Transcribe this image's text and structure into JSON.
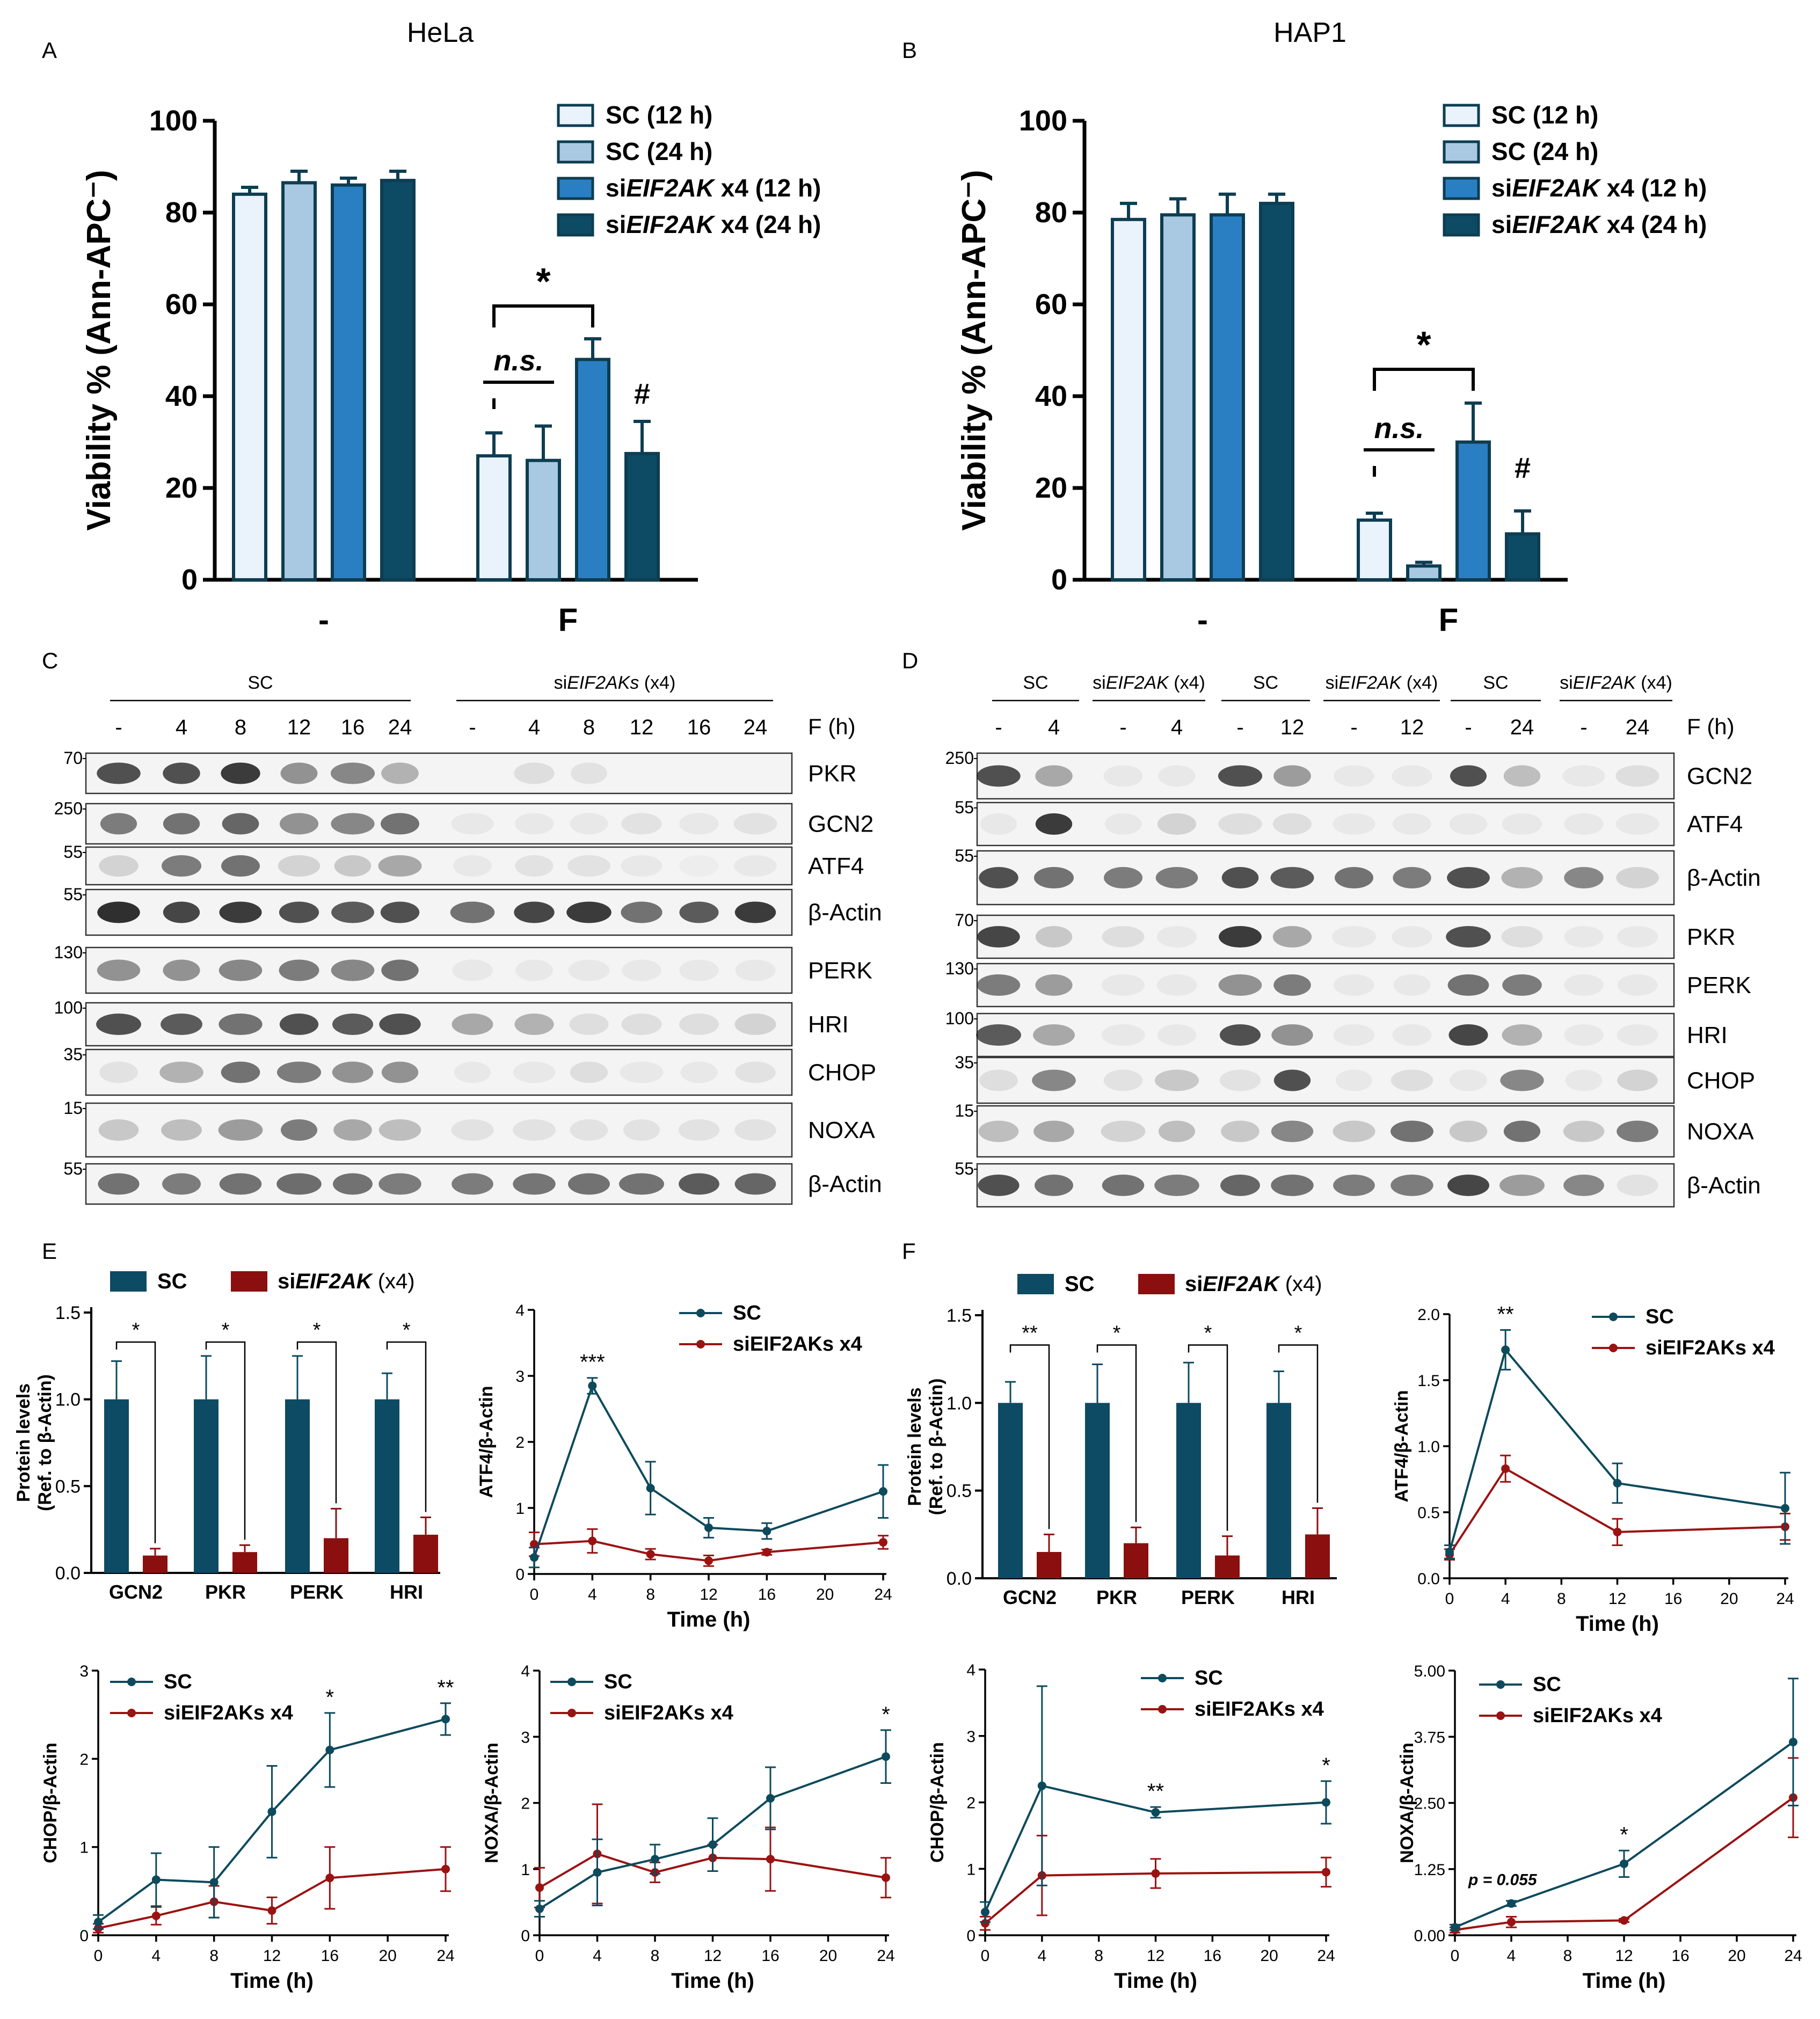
{
  "colors": {
    "sc12": "#eaf2fb",
    "sc24": "#a9c8e2",
    "si12": "#2a7fc3",
    "si24": "#0d4a63",
    "bar_edge": "#0d3d52",
    "dark_bar": "#0d4a63",
    "red_bar": "#8b0f0f",
    "line_sc": "#0d4a5c",
    "line_si": "#9b1212"
  },
  "panels": {
    "A": "A",
    "B": "B",
    "C": "C",
    "D": "D",
    "E": "E",
    "F": "F"
  },
  "A": {
    "title": "HeLa",
    "ylabel": "Viability % (Ann-APC⁻)",
    "yticks": [
      "0",
      "20",
      "40",
      "60",
      "80",
      "100"
    ],
    "groups": [
      "-",
      "F"
    ],
    "legend": [
      "SC (12 h)",
      "SC (24 h)",
      "siEIF2AK x4 (12 h)",
      "siEIF2AK x4 (24 h)"
    ],
    "sig": {
      "star": "*",
      "ns": "n.s.",
      "hash": "#"
    },
    "chart_data": {
      "type": "bar",
      "title": "HeLa",
      "ylabel": "Viability % (Ann-APC-)",
      "ylim": [
        0,
        100
      ],
      "categories": [
        "-",
        "F"
      ],
      "series": [
        {
          "name": "SC (12 h)",
          "values": [
            84,
            27
          ],
          "errors": [
            1.5,
            5
          ]
        },
        {
          "name": "SC (24 h)",
          "values": [
            86.5,
            26
          ],
          "errors": [
            2.5,
            7.5
          ]
        },
        {
          "name": "siEIF2AK x4 (12 h)",
          "values": [
            86,
            48
          ],
          "errors": [
            1.5,
            4.5
          ]
        },
        {
          "name": "siEIF2AK x4 (24 h)",
          "values": [
            87,
            27.5
          ],
          "errors": [
            2,
            7
          ]
        }
      ]
    }
  },
  "B": {
    "title": "HAP1",
    "ylabel": "Viability % (Ann-APC⁻)",
    "yticks": [
      "0",
      "20",
      "40",
      "60",
      "80",
      "100"
    ],
    "groups": [
      "-",
      "F"
    ],
    "legend": [
      "SC (12 h)",
      "SC (24 h)",
      "siEIF2AK x4 (12 h)",
      "siEIF2AK x4 (24 h)"
    ],
    "sig": {
      "star": "*",
      "ns": "n.s.",
      "hash": "#"
    },
    "chart_data": {
      "type": "bar",
      "title": "HAP1",
      "ylabel": "Viability % (Ann-APC-)",
      "ylim": [
        0,
        100
      ],
      "categories": [
        "-",
        "F"
      ],
      "series": [
        {
          "name": "SC (12 h)",
          "values": [
            78.5,
            13
          ],
          "errors": [
            3.5,
            1.5
          ]
        },
        {
          "name": "SC (24 h)",
          "values": [
            79.5,
            3
          ],
          "errors": [
            3.5,
            0.8
          ]
        },
        {
          "name": "siEIF2AK x4 (12 h)",
          "values": [
            79.5,
            30
          ],
          "errors": [
            4.5,
            8.5
          ]
        },
        {
          "name": "siEIF2AK x4 (24 h)",
          "values": [
            82,
            10
          ],
          "errors": [
            2,
            5
          ]
        }
      ]
    }
  },
  "C": {
    "groups": [
      "SC",
      "siEIF2AKs (x4)"
    ],
    "times": [
      "-",
      "4",
      "8",
      "12",
      "16",
      "24",
      "-",
      "4",
      "8",
      "12",
      "16",
      "24"
    ],
    "time_label": "F (h)",
    "rows": [
      {
        "name": "PKR",
        "mw": "70"
      },
      {
        "name": "GCN2",
        "mw": "250"
      },
      {
        "name": "ATF4",
        "mw": "55"
      },
      {
        "name": "β-Actin",
        "mw": "55"
      },
      {
        "name": "PERK",
        "mw": "130"
      },
      {
        "name": "HRI",
        "mw": "100"
      },
      {
        "name": "CHOP",
        "mw": "35"
      },
      {
        "name": "NOXA",
        "mw": "15"
      },
      {
        "name": "β-Actin",
        "mw": "55"
      }
    ]
  },
  "D": {
    "groups": [
      "SC",
      "siEIF2AK (x4)",
      "SC",
      "siEIF2AK (x4)",
      "SC",
      "siEIF2AK (x4)"
    ],
    "times": [
      "-",
      "4",
      "-",
      "4",
      "-",
      "12",
      "-",
      "12",
      "-",
      "24",
      "-",
      "24"
    ],
    "time_label": "F (h)",
    "rows": [
      {
        "name": "GCN2",
        "mw": "250"
      },
      {
        "name": "ATF4",
        "mw": "55"
      },
      {
        "name": "β-Actin",
        "mw": "55"
      },
      {
        "name": "PKR",
        "mw": "70"
      },
      {
        "name": "PERK",
        "mw": "130"
      },
      {
        "name": "HRI",
        "mw": "100"
      },
      {
        "name": "CHOP",
        "mw": "35"
      },
      {
        "name": "NOXA",
        "mw": "15"
      },
      {
        "name": "β-Actin",
        "mw": "55"
      }
    ]
  },
  "E_bar": {
    "legend": [
      "SC",
      "siEIF2AK (x4)"
    ],
    "ylabel1": "Protein levels",
    "ylabel2": "(Ref. to β-Actin)",
    "yticks": [
      "0.0",
      "0.5",
      "1.0",
      "1.5"
    ],
    "stars": [
      "*",
      "*",
      "*",
      "*"
    ],
    "chart_data": {
      "type": "bar",
      "ylim": [
        0,
        1.5
      ],
      "categories": [
        "GCN2",
        "PKR",
        "PERK",
        "HRI"
      ],
      "series": [
        {
          "name": "SC",
          "values": [
            1,
            1,
            1,
            1
          ],
          "errors": [
            0.22,
            0.25,
            0.25,
            0.15
          ]
        },
        {
          "name": "siEIF2AK (x4)",
          "values": [
            0.1,
            0.12,
            0.2,
            0.22
          ],
          "errors": [
            0.04,
            0.04,
            0.17,
            0.1
          ]
        }
      ]
    }
  },
  "F_bar": {
    "legend": [
      "SC",
      "siEIF2AK (x4)"
    ],
    "ylabel1": "Protein levels",
    "ylabel2": "(Ref. to β-Actin)",
    "yticks": [
      "0.0",
      "0.5",
      "1.0",
      "1.5"
    ],
    "stars": [
      "**",
      "*",
      "*",
      "*"
    ],
    "chart_data": {
      "type": "bar",
      "ylim": [
        0,
        1.5
      ],
      "categories": [
        "GCN2",
        "PKR",
        "PERK",
        "HRI"
      ],
      "series": [
        {
          "name": "SC",
          "values": [
            1,
            1,
            1,
            1
          ],
          "errors": [
            0.12,
            0.22,
            0.23,
            0.18
          ]
        },
        {
          "name": "siEIF2AK (x4)",
          "values": [
            0.15,
            0.2,
            0.13,
            0.25
          ],
          "errors": [
            0.1,
            0.09,
            0.11,
            0.15
          ]
        }
      ]
    }
  },
  "lines": {
    "legend": [
      "SC",
      "siEIF2AKs x4"
    ],
    "xlabel": "Time (h)",
    "E_atf4": {
      "ylabel": "ATF4/β-Actin",
      "yticks": [
        "0",
        "1",
        "2",
        "3",
        "4"
      ],
      "xticks": [
        "0",
        "4",
        "8",
        "12",
        "16",
        "20",
        "24"
      ],
      "annotations": [
        {
          "t": 4,
          "text": "***"
        }
      ],
      "chart_data": {
        "type": "line",
        "ylim": [
          0,
          4
        ],
        "xlim": [
          0,
          24
        ],
        "x": [
          0,
          4,
          8,
          12,
          16,
          24
        ],
        "series": [
          {
            "name": "SC",
            "values": [
              0.25,
              2.85,
              1.3,
              0.7,
              0.65,
              1.25
            ],
            "errors": [
              0.15,
              0.12,
              0.4,
              0.15,
              0.12,
              0.4
            ]
          },
          {
            "name": "siEIF2AKs x4",
            "values": [
              0.45,
              0.5,
              0.3,
              0.2,
              0.33,
              0.48
            ],
            "errors": [
              0.18,
              0.18,
              0.08,
              0.08,
              0.04,
              0.1
            ]
          }
        ]
      }
    },
    "E_chop": {
      "ylabel": "CHOP/β-Actin",
      "yticks": [
        "0",
        "1",
        "2",
        "3"
      ],
      "xticks": [
        "0",
        "4",
        "8",
        "12",
        "16",
        "20",
        "24"
      ],
      "annotations": [
        {
          "t": 16,
          "text": "*"
        },
        {
          "t": 24,
          "text": "**"
        }
      ],
      "chart_data": {
        "type": "line",
        "ylim": [
          0,
          3
        ],
        "xlim": [
          0,
          24
        ],
        "x": [
          0,
          4,
          8,
          12,
          16,
          24
        ],
        "series": [
          {
            "name": "SC",
            "values": [
              0.15,
              0.63,
              0.6,
              1.4,
              2.1,
              2.45
            ],
            "errors": [
              0.08,
              0.3,
              0.4,
              0.52,
              0.42,
              0.18
            ]
          },
          {
            "name": "siEIF2AKs x4",
            "values": [
              0.08,
              0.22,
              0.38,
              0.28,
              0.65,
              0.75
            ],
            "errors": [
              0.05,
              0.1,
              0.18,
              0.15,
              0.35,
              0.25
            ]
          }
        ]
      }
    },
    "E_noxa": {
      "ylabel": "NOXA/β-Actin",
      "yticks": [
        "0",
        "1",
        "2",
        "3",
        "4"
      ],
      "xticks": [
        "0",
        "4",
        "8",
        "12",
        "16",
        "20",
        "24"
      ],
      "annotations": [
        {
          "t": 24,
          "text": "*"
        }
      ],
      "chart_data": {
        "type": "line",
        "ylim": [
          0,
          4
        ],
        "xlim": [
          0,
          24
        ],
        "x": [
          0,
          4,
          8,
          12,
          16,
          24
        ],
        "series": [
          {
            "name": "SC",
            "values": [
              0.4,
              0.95,
              1.15,
              1.37,
              2.07,
              2.7
            ],
            "errors": [
              0.12,
              0.5,
              0.22,
              0.4,
              0.47,
              0.4
            ]
          },
          {
            "name": "siEIF2AKs x4",
            "values": [
              0.72,
              1.23,
              0.95,
              1.17,
              1.15,
              0.87
            ],
            "errors": [
              0.3,
              0.75,
              0.15,
              0.2,
              0.48,
              0.3
            ]
          }
        ]
      }
    },
    "F_atf4": {
      "ylabel": "ATF4/β-Actin",
      "yticks": [
        "0.0",
        "0.5",
        "1.0",
        "1.5",
        "2.0"
      ],
      "xticks": [
        "0",
        "4",
        "8",
        "12",
        "16",
        "20",
        "24"
      ],
      "annotations": [
        {
          "t": 4,
          "text": "**"
        }
      ],
      "chart_data": {
        "type": "line",
        "ylim": [
          0,
          2
        ],
        "xlim": [
          0,
          24
        ],
        "x": [
          0,
          4,
          12,
          24
        ],
        "series": [
          {
            "name": "SC",
            "values": [
              0.2,
              1.73,
              0.72,
              0.53
            ],
            "errors": [
              0.05,
              0.15,
              0.15,
              0.27
            ]
          },
          {
            "name": "siEIF2AKs x4",
            "values": [
              0.18,
              0.83,
              0.35,
              0.39
            ],
            "errors": [
              0.04,
              0.1,
              0.1,
              0.1
            ]
          }
        ]
      }
    },
    "F_chop": {
      "ylabel": "CHOP/β-Actin",
      "yticks": [
        "0",
        "1",
        "2",
        "3",
        "4"
      ],
      "xticks": [
        "0",
        "4",
        "8",
        "12",
        "16",
        "20",
        "24"
      ],
      "annotations": [
        {
          "t": 12,
          "text": "**"
        },
        {
          "t": 24,
          "text": "*"
        }
      ],
      "chart_data": {
        "type": "line",
        "ylim": [
          0,
          4
        ],
        "xlim": [
          0,
          24
        ],
        "x": [
          0,
          4,
          12,
          24
        ],
        "series": [
          {
            "name": "SC",
            "values": [
              0.35,
              2.25,
              1.85,
              2.0
            ],
            "errors": [
              0.15,
              1.5,
              0.08,
              0.32
            ]
          },
          {
            "name": "siEIF2AKs x4",
            "values": [
              0.18,
              0.9,
              0.93,
              0.95
            ],
            "errors": [
              0.1,
              0.6,
              0.22,
              0.22
            ]
          }
        ]
      }
    },
    "F_noxa": {
      "ylabel": "NOXA/β-Actin",
      "yticks": [
        "0.00",
        "1.25",
        "2.50",
        "3.75",
        "5.00"
      ],
      "xticks": [
        "0",
        "4",
        "8",
        "12",
        "16",
        "20",
        "24"
      ],
      "annotations": [
        {
          "t": 12,
          "text": "*"
        }
      ],
      "pvalue": "p = 0.055",
      "chart_data": {
        "type": "line",
        "ylim": [
          0,
          5
        ],
        "xlim": [
          0,
          24
        ],
        "x": [
          0,
          4,
          12,
          24
        ],
        "series": [
          {
            "name": "SC",
            "values": [
              0.15,
              0.6,
              1.35,
              3.65
            ],
            "errors": [
              0.05,
              0.05,
              0.25,
              1.2
            ]
          },
          {
            "name": "siEIF2AKs x4",
            "values": [
              0.1,
              0.25,
              0.28,
              2.6
            ],
            "errors": [
              0.05,
              0.1,
              0.03,
              0.75
            ]
          }
        ]
      }
    }
  }
}
